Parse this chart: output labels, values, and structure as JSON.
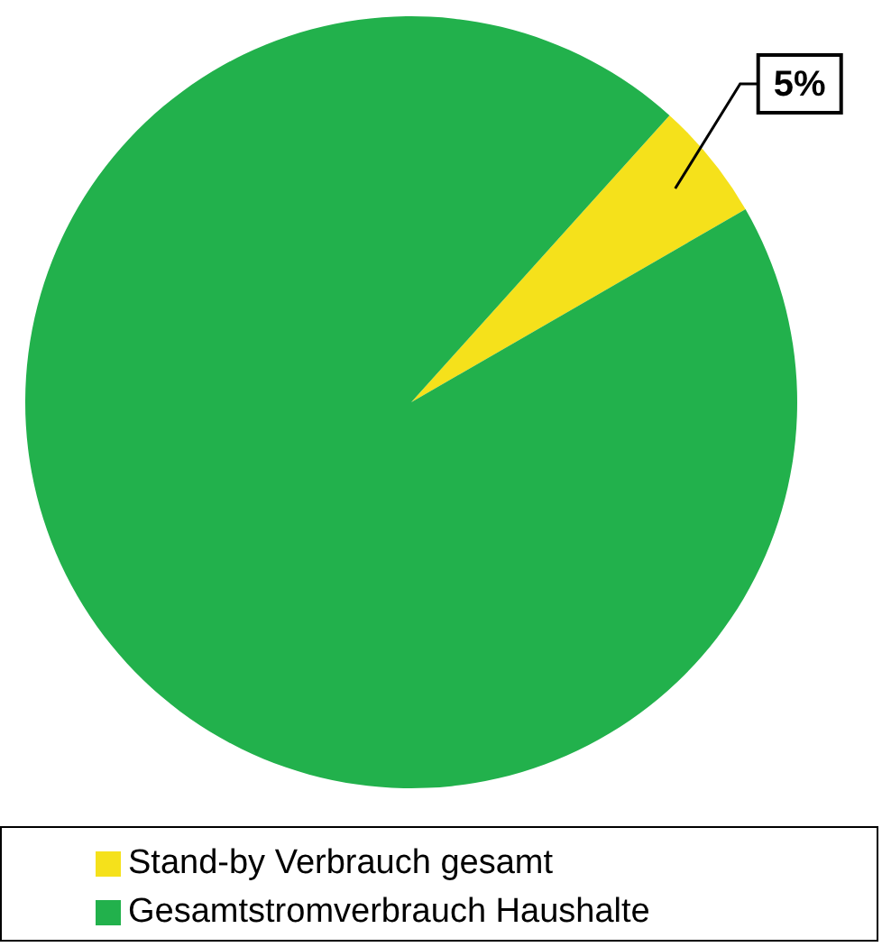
{
  "chart_data": {
    "type": "pie",
    "categories": [
      "Stand-by Verbrauch gesamt",
      "Gesamtstromverbrauch Haushalte"
    ],
    "values": [
      5,
      95
    ],
    "colors": [
      "#f5e11b",
      "#22b14c"
    ],
    "value_labels": [
      "5%",
      null
    ],
    "legend": "bottom"
  }
}
